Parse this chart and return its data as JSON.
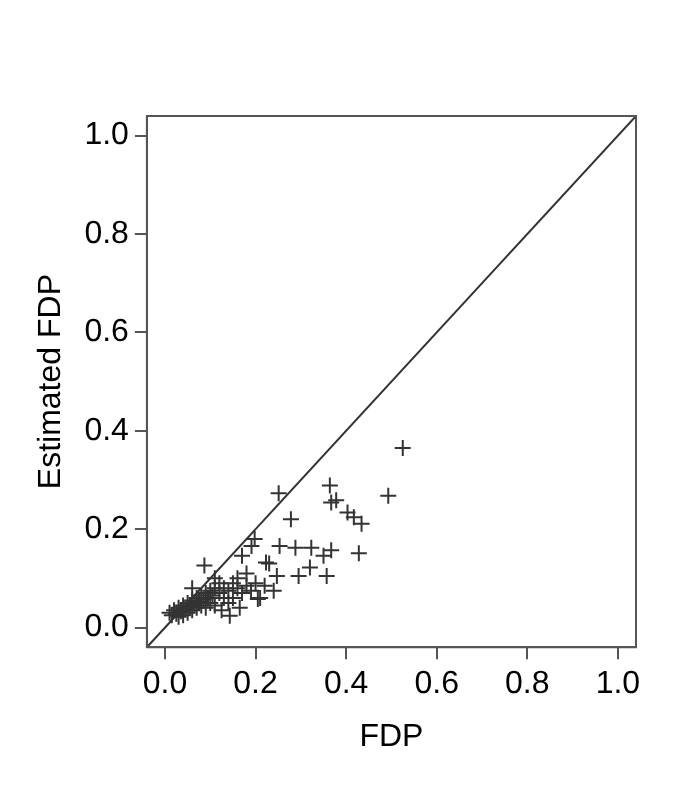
{
  "chart_data": {
    "type": "scatter",
    "xlabel": "FDP",
    "ylabel": "Estimated FDP",
    "xlim": [
      -0.04,
      1.04
    ],
    "ylim": [
      -0.04,
      1.04
    ],
    "xticks": [
      {
        "value": 0,
        "label": "0.0"
      },
      {
        "value": 0.2,
        "label": "0.2"
      },
      {
        "value": 0.4,
        "label": "0.4"
      },
      {
        "value": 0.6,
        "label": "0.6"
      },
      {
        "value": 0.8,
        "label": "0.8"
      },
      {
        "value": 1,
        "label": "1.0"
      }
    ],
    "yticks": [
      {
        "value": 0,
        "label": "0.0"
      },
      {
        "value": 0.2,
        "label": "0.2"
      },
      {
        "value": 0.4,
        "label": "0.4"
      },
      {
        "value": 0.6,
        "label": "0.6"
      },
      {
        "value": 0.8,
        "label": "0.8"
      },
      {
        "value": 1,
        "label": "1.0"
      }
    ],
    "grid": false,
    "legend": false,
    "marker": "cross",
    "series": [
      {
        "type": "scatter",
        "color": "#333333",
        "x": [
          0.525,
          0.493,
          0.251,
          0.364,
          0.367,
          0.378,
          0.403,
          0.417,
          0.434,
          0.278,
          0.428,
          0.367,
          0.35,
          0.357,
          0.32,
          0.288,
          0.323,
          0.295,
          0.253,
          0.223,
          0.191,
          0.17,
          0.198,
          0.247,
          0.205,
          0.087,
          0.143,
          0.01,
          0.015,
          0.02,
          0.025,
          0.03,
          0.03,
          0.035,
          0.04,
          0.04,
          0.045,
          0.05,
          0.05,
          0.055,
          0.06,
          0.06,
          0.065,
          0.07,
          0.07,
          0.075,
          0.08,
          0.08,
          0.085,
          0.09,
          0.09,
          0.095,
          0.1,
          0.1,
          0.105,
          0.11,
          0.11,
          0.12,
          0.12,
          0.13,
          0.13,
          0.14,
          0.14,
          0.15,
          0.15,
          0.16,
          0.16,
          0.17,
          0.18,
          0.18,
          0.19,
          0.2,
          0.21,
          0.22,
          0.23,
          0.24,
          0.06,
          0.11,
          0.125,
          0.165
        ],
        "values": [
          0.365,
          0.268,
          0.273,
          0.289,
          0.254,
          0.259,
          0.234,
          0.224,
          0.211,
          0.22,
          0.151,
          0.157,
          0.146,
          0.105,
          0.122,
          0.162,
          0.162,
          0.105,
          0.166,
          0.132,
          0.166,
          0.146,
          0.18,
          0.105,
          0.058,
          0.126,
          0.024,
          0.03,
          0.025,
          0.035,
          0.028,
          0.04,
          0.022,
          0.033,
          0.045,
          0.025,
          0.038,
          0.05,
          0.03,
          0.042,
          0.055,
          0.035,
          0.048,
          0.06,
          0.04,
          0.052,
          0.065,
          0.045,
          0.057,
          0.07,
          0.04,
          0.06,
          0.075,
          0.05,
          0.065,
          0.08,
          0.045,
          0.07,
          0.09,
          0.06,
          0.08,
          0.075,
          0.05,
          0.09,
          0.06,
          0.08,
          0.1,
          0.07,
          0.085,
          0.11,
          0.075,
          0.09,
          0.06,
          0.085,
          0.13,
          0.075,
          0.08,
          0.1,
          0.035,
          0.04
        ]
      },
      {
        "type": "line",
        "color": "#333333",
        "marker": "none",
        "x": [
          -0.04,
          1.04
        ],
        "values": [
          -0.04,
          1.04
        ]
      }
    ]
  }
}
